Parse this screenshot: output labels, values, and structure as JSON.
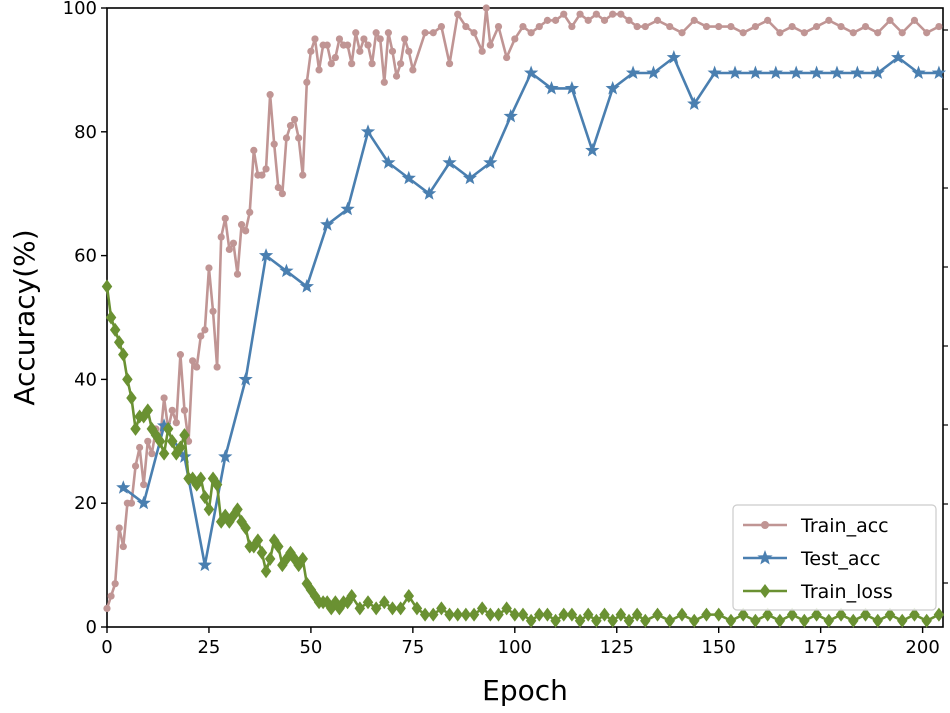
{
  "chart_data": {
    "type": "line",
    "title": "",
    "xlabel": "Epoch",
    "ylabel": "Accuracy(%)",
    "xlim": [
      0,
      205
    ],
    "ylim": [
      0,
      100
    ],
    "x_ticks": [
      0,
      25,
      50,
      75,
      100,
      125,
      150,
      175,
      200
    ],
    "y_ticks": [
      0,
      20,
      40,
      60,
      80,
      100
    ],
    "grid": false,
    "legend_position": "bottom-right",
    "series": [
      {
        "name": "Train_acc",
        "color": "#c09594",
        "marker": "circle",
        "x": [
          0,
          1,
          2,
          3,
          4,
          5,
          6,
          7,
          8,
          9,
          10,
          11,
          12,
          13,
          14,
          15,
          16,
          17,
          18,
          19,
          20,
          21,
          22,
          23,
          24,
          25,
          26,
          27,
          28,
          29,
          30,
          31,
          32,
          33,
          34,
          35,
          36,
          37,
          38,
          39,
          40,
          41,
          42,
          43,
          44,
          45,
          46,
          47,
          48,
          49,
          50,
          51,
          52,
          53,
          54,
          55,
          56,
          57,
          58,
          59,
          60,
          61,
          62,
          63,
          64,
          65,
          66,
          67,
          68,
          69,
          70,
          71,
          72,
          73,
          74,
          75,
          78,
          80,
          82,
          84,
          86,
          88,
          90,
          92,
          93,
          94,
          96,
          98,
          100,
          102,
          104,
          106,
          108,
          110,
          112,
          114,
          116,
          118,
          120,
          122,
          124,
          126,
          128,
          130,
          132,
          135,
          138,
          141,
          144,
          147,
          150,
          153,
          156,
          159,
          162,
          165,
          168,
          171,
          174,
          177,
          180,
          183,
          186,
          189,
          192,
          195,
          198,
          201,
          204
        ],
        "y": [
          3,
          5,
          7,
          16,
          13,
          20,
          20,
          26,
          29,
          23,
          30,
          28,
          32,
          30,
          37,
          32,
          35,
          33,
          44,
          35,
          30,
          43,
          42,
          47,
          48,
          58,
          51,
          42,
          63,
          66,
          61,
          62,
          57,
          65,
          64,
          67,
          77,
          73,
          73,
          74,
          86,
          78,
          71,
          70,
          79,
          81,
          82,
          79,
          73,
          88,
          93,
          95,
          90,
          94,
          94,
          91,
          92,
          95,
          94,
          94,
          91,
          96,
          93,
          95,
          94,
          91,
          96,
          95,
          88,
          96,
          93,
          89,
          91,
          95,
          93,
          90,
          96,
          96,
          97,
          91,
          99,
          97,
          96,
          93,
          100,
          94,
          97,
          92,
          95,
          97,
          96,
          97,
          98,
          98,
          99,
          97,
          99,
          98,
          99,
          98,
          99,
          99,
          98,
          97,
          97,
          98,
          97,
          96,
          98,
          97,
          97,
          97,
          96,
          97,
          98,
          96,
          97,
          96,
          97,
          98,
          97,
          96,
          97,
          96,
          98,
          96,
          98,
          96,
          97
        ]
      },
      {
        "name": "Test_acc",
        "color": "#4a7fb0",
        "marker": "star",
        "x": [
          4,
          9,
          14,
          19,
          24,
          29,
          34,
          39,
          44,
          49,
          54,
          59,
          64,
          69,
          74,
          79,
          84,
          89,
          94,
          99,
          104,
          109,
          114,
          119,
          124,
          129,
          134,
          139,
          144,
          149,
          154,
          159,
          164,
          169,
          174,
          179,
          184,
          189,
          194,
          199,
          204
        ],
        "y": [
          22.5,
          20,
          32.5,
          27.5,
          10,
          27.5,
          40,
          60,
          57.5,
          55,
          65,
          67.5,
          80,
          75,
          72.5,
          70,
          75,
          72.5,
          75,
          82.5,
          89.5,
          87,
          87,
          77,
          87,
          89.5,
          89.5,
          92,
          84.5,
          89.5,
          89.5,
          89.5,
          89.5,
          89.5,
          89.5,
          89.5,
          89.5,
          89.5,
          92,
          89.5,
          89.5
        ]
      },
      {
        "name": "Train_loss",
        "color": "#6a9132",
        "marker": "diamond",
        "x": [
          0,
          1,
          2,
          3,
          4,
          5,
          6,
          7,
          8,
          9,
          10,
          11,
          12,
          13,
          14,
          15,
          16,
          17,
          18,
          19,
          20,
          21,
          22,
          23,
          24,
          25,
          26,
          27,
          28,
          29,
          30,
          31,
          32,
          33,
          34,
          35,
          36,
          37,
          38,
          39,
          40,
          41,
          42,
          43,
          44,
          45,
          46,
          47,
          48,
          49,
          50,
          51,
          52,
          53,
          54,
          55,
          56,
          57,
          58,
          59,
          60,
          62,
          64,
          66,
          68,
          70,
          72,
          74,
          76,
          78,
          80,
          82,
          84,
          86,
          88,
          90,
          92,
          94,
          96,
          98,
          100,
          102,
          104,
          106,
          108,
          110,
          112,
          114,
          116,
          118,
          120,
          122,
          124,
          126,
          128,
          130,
          132,
          135,
          138,
          141,
          144,
          147,
          150,
          153,
          156,
          159,
          162,
          165,
          168,
          171,
          174,
          177,
          180,
          183,
          186,
          189,
          192,
          195,
          198,
          201,
          204
        ],
        "y": [
          55,
          50,
          48,
          46,
          44,
          40,
          37,
          32,
          34,
          34,
          35,
          32,
          31,
          30,
          28,
          32,
          30,
          28,
          29,
          31,
          24,
          24,
          23,
          24,
          21,
          19,
          24,
          23,
          17,
          18,
          17,
          18,
          19,
          17,
          16,
          13,
          13,
          14,
          12,
          9,
          11,
          14,
          13,
          10,
          11,
          12,
          11,
          10,
          11,
          7,
          6,
          5,
          4,
          4,
          4,
          3,
          4,
          3,
          4,
          4,
          5,
          3,
          4,
          3,
          4,
          3,
          3,
          5,
          3,
          2,
          2,
          3,
          2,
          2,
          2,
          2,
          3,
          2,
          2,
          3,
          2,
          2,
          1,
          2,
          2,
          1,
          2,
          2,
          1,
          2,
          1,
          2,
          1,
          2,
          1,
          2,
          1,
          2,
          1,
          2,
          1,
          2,
          2,
          1,
          2,
          1,
          2,
          1,
          2,
          1,
          2,
          1,
          2,
          1,
          2,
          1,
          2,
          1,
          2,
          1,
          2
        ]
      }
    ]
  }
}
